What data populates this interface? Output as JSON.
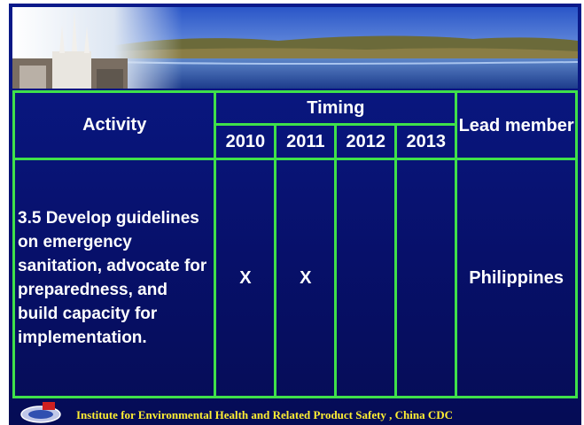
{
  "table": {
    "headers": {
      "activity": "Activity",
      "timing": "Timing",
      "years": [
        2010,
        2011,
        2012,
        2013
      ],
      "lead": "Lead member"
    },
    "rows": [
      {
        "activity": "3.5 Develop guidelines on emergency sanitation, advocate for preparedness, and build capacity for implementation.",
        "marks": [
          "X",
          "X",
          null,
          null
        ],
        "lead": "Philippines"
      }
    ]
  },
  "footer": {
    "text": "Institute for Environmental Health and Related Product Safety , China CDC"
  }
}
